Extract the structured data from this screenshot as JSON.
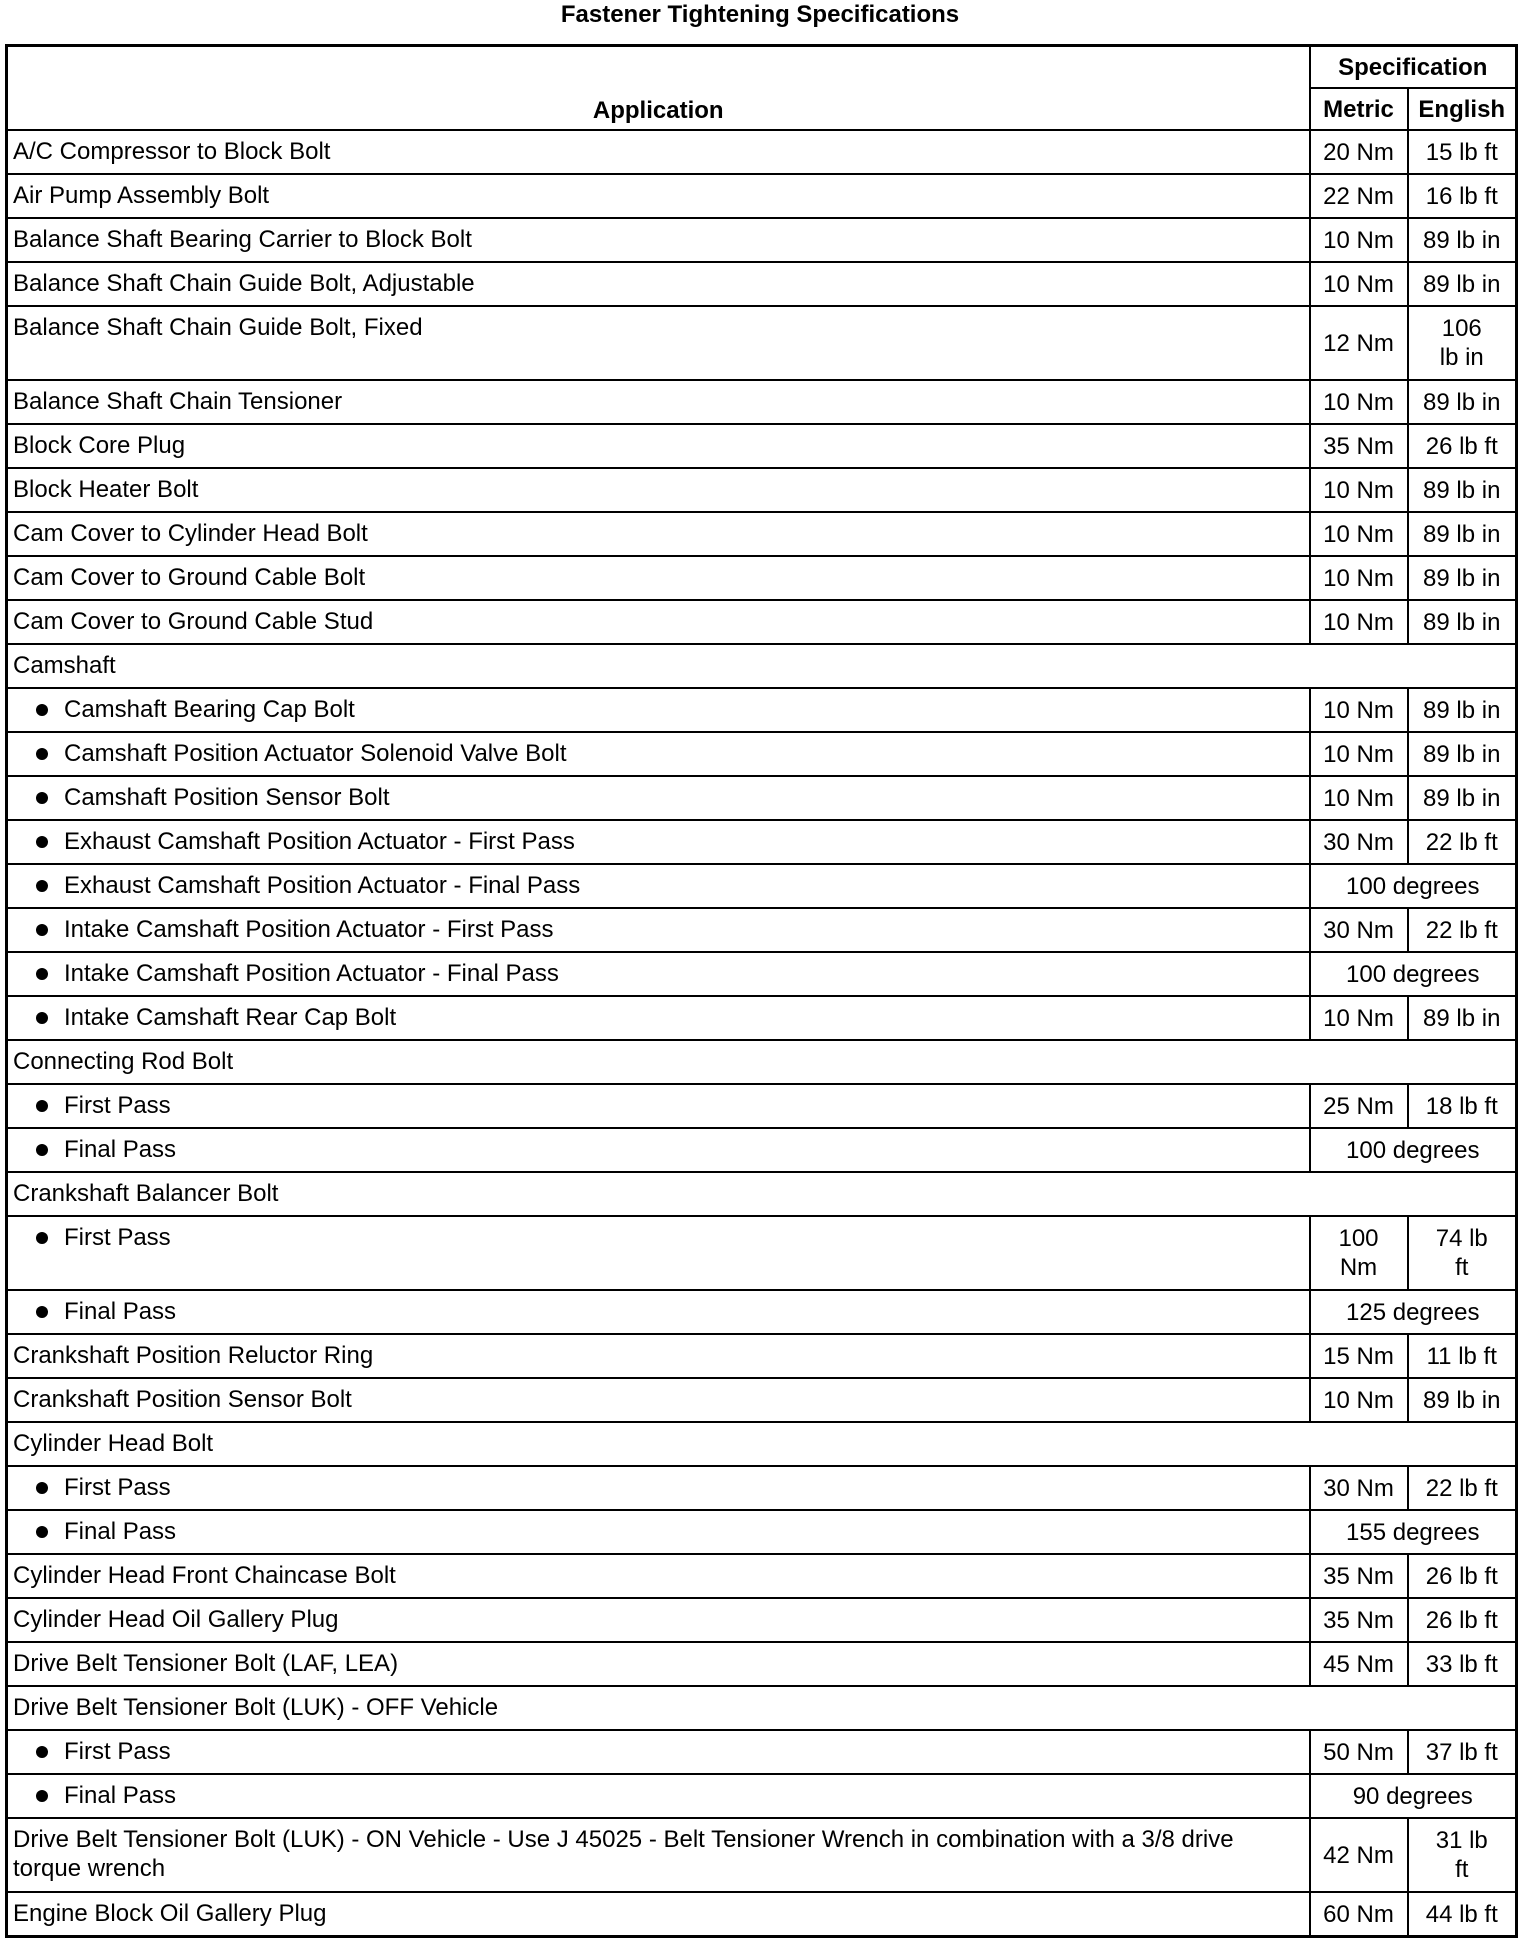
{
  "title": "Fastener Tightening Specifications",
  "headers": {
    "application": "Application",
    "specification": "Specification",
    "metric": "Metric",
    "english": "English"
  },
  "rows": [
    {
      "app": "A/C Compressor to Block Bolt",
      "metric": "20 Nm",
      "english": "15 lb ft"
    },
    {
      "app": "Air Pump Assembly Bolt",
      "metric": "22 Nm",
      "english": "16 lb ft"
    },
    {
      "app": "Balance Shaft Bearing Carrier to Block Bolt",
      "metric": "10 Nm",
      "english": "89 lb in"
    },
    {
      "app": "Balance Shaft Chain Guide Bolt, Adjustable",
      "metric": "10 Nm",
      "english": "89 lb in"
    },
    {
      "app": "Balance Shaft Chain Guide Bolt, Fixed",
      "metric": "12 Nm",
      "english": "106 lb in",
      "tall": true
    },
    {
      "app": "Balance Shaft Chain Tensioner",
      "metric": "10 Nm",
      "english": "89 lb in"
    },
    {
      "app": "Block Core Plug",
      "metric": "35 Nm",
      "english": "26 lb ft"
    },
    {
      "app": "Block Heater Bolt",
      "metric": "10 Nm",
      "english": "89 lb in"
    },
    {
      "app": "Cam Cover to Cylinder Head Bolt",
      "metric": "10 Nm",
      "english": "89 lb in"
    },
    {
      "app": "Cam Cover to Ground Cable Bolt",
      "metric": "10 Nm",
      "english": "89 lb in"
    },
    {
      "app": "Cam Cover to Ground Cable Stud",
      "metric": "10 Nm",
      "english": "89 lb in"
    },
    {
      "app": "Camshaft",
      "group": true
    },
    {
      "app": "Camshaft Bearing Cap Bolt",
      "bullet": true,
      "metric": "10 Nm",
      "english": "89 lb in"
    },
    {
      "app": "Camshaft Position Actuator Solenoid Valve Bolt",
      "bullet": true,
      "metric": "10 Nm",
      "english": "89 lb in"
    },
    {
      "app": "Camshaft Position Sensor Bolt",
      "bullet": true,
      "metric": "10 Nm",
      "english": "89 lb in"
    },
    {
      "app": "Exhaust Camshaft Position Actuator - First Pass",
      "bullet": true,
      "metric": "30 Nm",
      "english": "22 lb ft"
    },
    {
      "app": "Exhaust Camshaft Position Actuator - Final Pass",
      "bullet": true,
      "combined": "100 degrees"
    },
    {
      "app": "Intake Camshaft Position Actuator - First Pass",
      "bullet": true,
      "metric": "30 Nm",
      "english": "22 lb ft"
    },
    {
      "app": "Intake Camshaft Position Actuator - Final Pass",
      "bullet": true,
      "combined": "100 degrees"
    },
    {
      "app": "Intake Camshaft Rear Cap Bolt",
      "bullet": true,
      "metric": "10 Nm",
      "english": "89 lb in"
    },
    {
      "app": "Connecting Rod Bolt",
      "group": true
    },
    {
      "app": "First Pass",
      "bullet": true,
      "metric": "25 Nm",
      "english": "18 lb ft"
    },
    {
      "app": "Final Pass",
      "bullet": true,
      "combined": "100 degrees"
    },
    {
      "app": "Crankshaft Balancer Bolt",
      "group": true
    },
    {
      "app": "First Pass",
      "bullet": true,
      "metric": "100 Nm",
      "english": "74 lb ft",
      "tall": true
    },
    {
      "app": "Final Pass",
      "bullet": true,
      "combined": "125 degrees"
    },
    {
      "app": "Crankshaft Position Reluctor Ring",
      "metric": "15 Nm",
      "english": "11 lb ft"
    },
    {
      "app": "Crankshaft Position Sensor Bolt",
      "metric": "10 Nm",
      "english": "89 lb in"
    },
    {
      "app": "Cylinder Head Bolt",
      "group": true
    },
    {
      "app": "First Pass",
      "bullet": true,
      "metric": "30 Nm",
      "english": "22 lb ft"
    },
    {
      "app": "Final Pass",
      "bullet": true,
      "combined": "155 degrees"
    },
    {
      "app": "Cylinder Head Front Chaincase Bolt",
      "metric": "35 Nm",
      "english": "26 lb ft"
    },
    {
      "app": "Cylinder Head Oil Gallery Plug",
      "metric": "35 Nm",
      "english": "26 lb ft"
    },
    {
      "app": "Drive Belt Tensioner Bolt (LAF, LEA)",
      "metric": "45 Nm",
      "english": "33 lb ft"
    },
    {
      "app": "Drive Belt Tensioner Bolt (LUK) - OFF Vehicle",
      "group": true
    },
    {
      "app": "First Pass",
      "bullet": true,
      "metric": "50 Nm",
      "english": "37 lb ft"
    },
    {
      "app": "Final Pass",
      "bullet": true,
      "combined": "90 degrees"
    },
    {
      "app": "Drive Belt Tensioner Bolt (LUK) - ON Vehicle - Use J 45025 - Belt Tensioner Wrench in combination with a 3/8 drive torque wrench",
      "metric": "42 Nm",
      "english": "31 lb ft",
      "tall": true
    },
    {
      "app": "Engine Block Oil Gallery Plug",
      "metric": "60 Nm",
      "english": "44 lb ft"
    }
  ]
}
